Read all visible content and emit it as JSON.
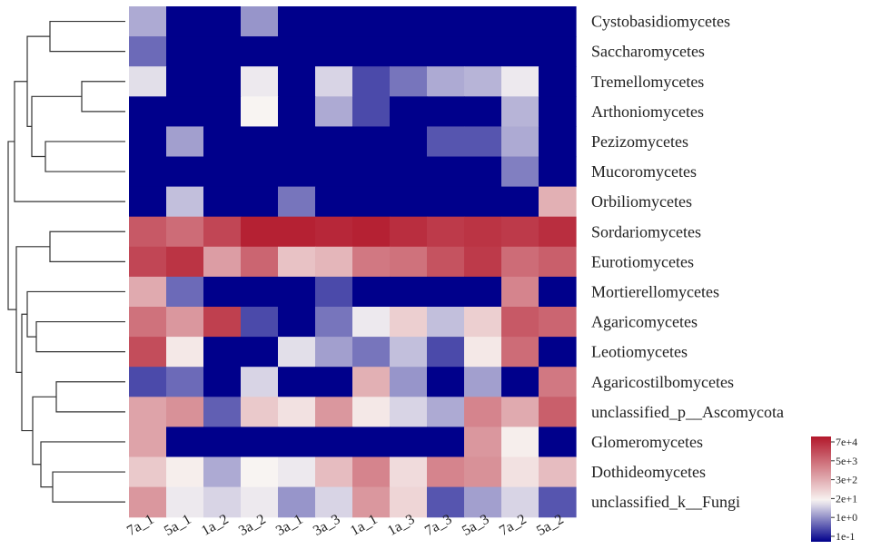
{
  "chart_data": {
    "type": "heatmap",
    "title": "",
    "xlabel": "",
    "ylabel": "",
    "columns": [
      "7a_1",
      "5a_1",
      "1a_2",
      "3a_2",
      "3a_1",
      "3a_3",
      "1a_1",
      "1a_3",
      "7a_3",
      "5a_3",
      "7a_2",
      "5a_2"
    ],
    "rows": [
      "Cystobasidiomycetes",
      "Saccharomycetes",
      "Tremellomycetes",
      "Arthoniomycetes",
      "Pezizomycetes",
      "Mucoromycetes",
      "Orbiliomycetes",
      "Sordariomycetes",
      "Eurotiomycetes",
      "Mortierellomycetes",
      "Agaricomycetes",
      "Leotiomycetes",
      "Agaricostilbomycetes",
      "unclassified_p__Ascomycota",
      "Glomeromycetes",
      "Dothideomycetes",
      "unclassified_k__Fungi"
    ],
    "values_log10": [
      [
        0.6,
        -1.0,
        -1.0,
        0.4,
        -1.0,
        -1.0,
        -1.0,
        -1.0,
        -1.0,
        -1.0,
        -1.0,
        -1.0
      ],
      [
        0.0,
        -1.0,
        -1.0,
        -1.0,
        -1.0,
        -1.0,
        -1.0,
        -1.0,
        -1.0,
        -1.0,
        -1.0,
        -1.0
      ],
      [
        1.1,
        -1.0,
        -1.0,
        1.2,
        -1.0,
        1.0,
        -0.3,
        0.1,
        0.6,
        0.7,
        1.2,
        -1.0
      ],
      [
        -1.0,
        -1.0,
        -1.0,
        1.3,
        -1.0,
        0.6,
        -0.3,
        -1.0,
        -1.0,
        -1.0,
        0.7,
        -1.0
      ],
      [
        -1.0,
        0.5,
        -1.0,
        -1.0,
        -1.0,
        -1.0,
        -1.0,
        -1.0,
        -0.2,
        -0.2,
        0.6,
        -1.0
      ],
      [
        -1.0,
        -1.0,
        -1.0,
        -1.0,
        -1.0,
        -1.0,
        -1.0,
        -1.0,
        -1.0,
        -1.0,
        0.2,
        -1.0
      ],
      [
        -1.0,
        0.8,
        -1.0,
        -1.0,
        0.1,
        -1.0,
        -1.0,
        -1.0,
        -1.0,
        -1.0,
        -1.0,
        2.4
      ],
      [
        3.8,
        3.5,
        4.1,
        4.7,
        4.7,
        4.6,
        4.7,
        4.5,
        4.3,
        4.4,
        4.3,
        4.5
      ],
      [
        4.1,
        4.4,
        2.7,
        3.6,
        2.1,
        2.3,
        3.3,
        3.4,
        3.9,
        4.3,
        3.5,
        3.7
      ],
      [
        2.5,
        0.0,
        -1.0,
        -1.0,
        -1.0,
        -0.3,
        -1.0,
        -1.0,
        -1.0,
        -1.0,
        3.1,
        -1.0
      ],
      [
        3.4,
        2.8,
        4.2,
        -0.3,
        -1.0,
        0.1,
        1.2,
        1.9,
        0.8,
        1.9,
        3.8,
        3.6
      ],
      [
        4.0,
        1.5,
        -1.0,
        -1.0,
        1.1,
        0.5,
        0.1,
        0.8,
        -0.3,
        1.5,
        3.5,
        -1.0
      ],
      [
        -0.3,
        0.0,
        -1.0,
        1.0,
        -1.0,
        -1.0,
        2.4,
        0.4,
        -1.0,
        0.5,
        -1.0,
        3.3
      ],
      [
        2.6,
        2.9,
        -0.1,
        2.0,
        1.6,
        2.8,
        1.5,
        1.0,
        0.6,
        3.1,
        2.5,
        3.7
      ],
      [
        2.6,
        -1.0,
        -1.0,
        -1.0,
        -1.0,
        -1.0,
        -1.0,
        -1.0,
        -1.0,
        2.8,
        1.4,
        -1.0
      ],
      [
        2.0,
        1.4,
        0.6,
        1.3,
        1.2,
        2.2,
        3.1,
        1.7,
        3.1,
        2.9,
        1.6,
        2.2
      ],
      [
        2.8,
        1.2,
        1.0,
        1.2,
        0.4,
        1.0,
        2.8,
        1.8,
        -0.2,
        0.5,
        1.0,
        -0.2
      ]
    ],
    "color_scale": {
      "ticks": [
        "7e+4",
        "5e+3",
        "3e+2",
        "2e+1",
        "1e+0",
        "1e-1"
      ],
      "low": "#00008b",
      "mid": "#f8f4f2",
      "high": "#b2182b"
    },
    "dendrogram": "rows"
  }
}
